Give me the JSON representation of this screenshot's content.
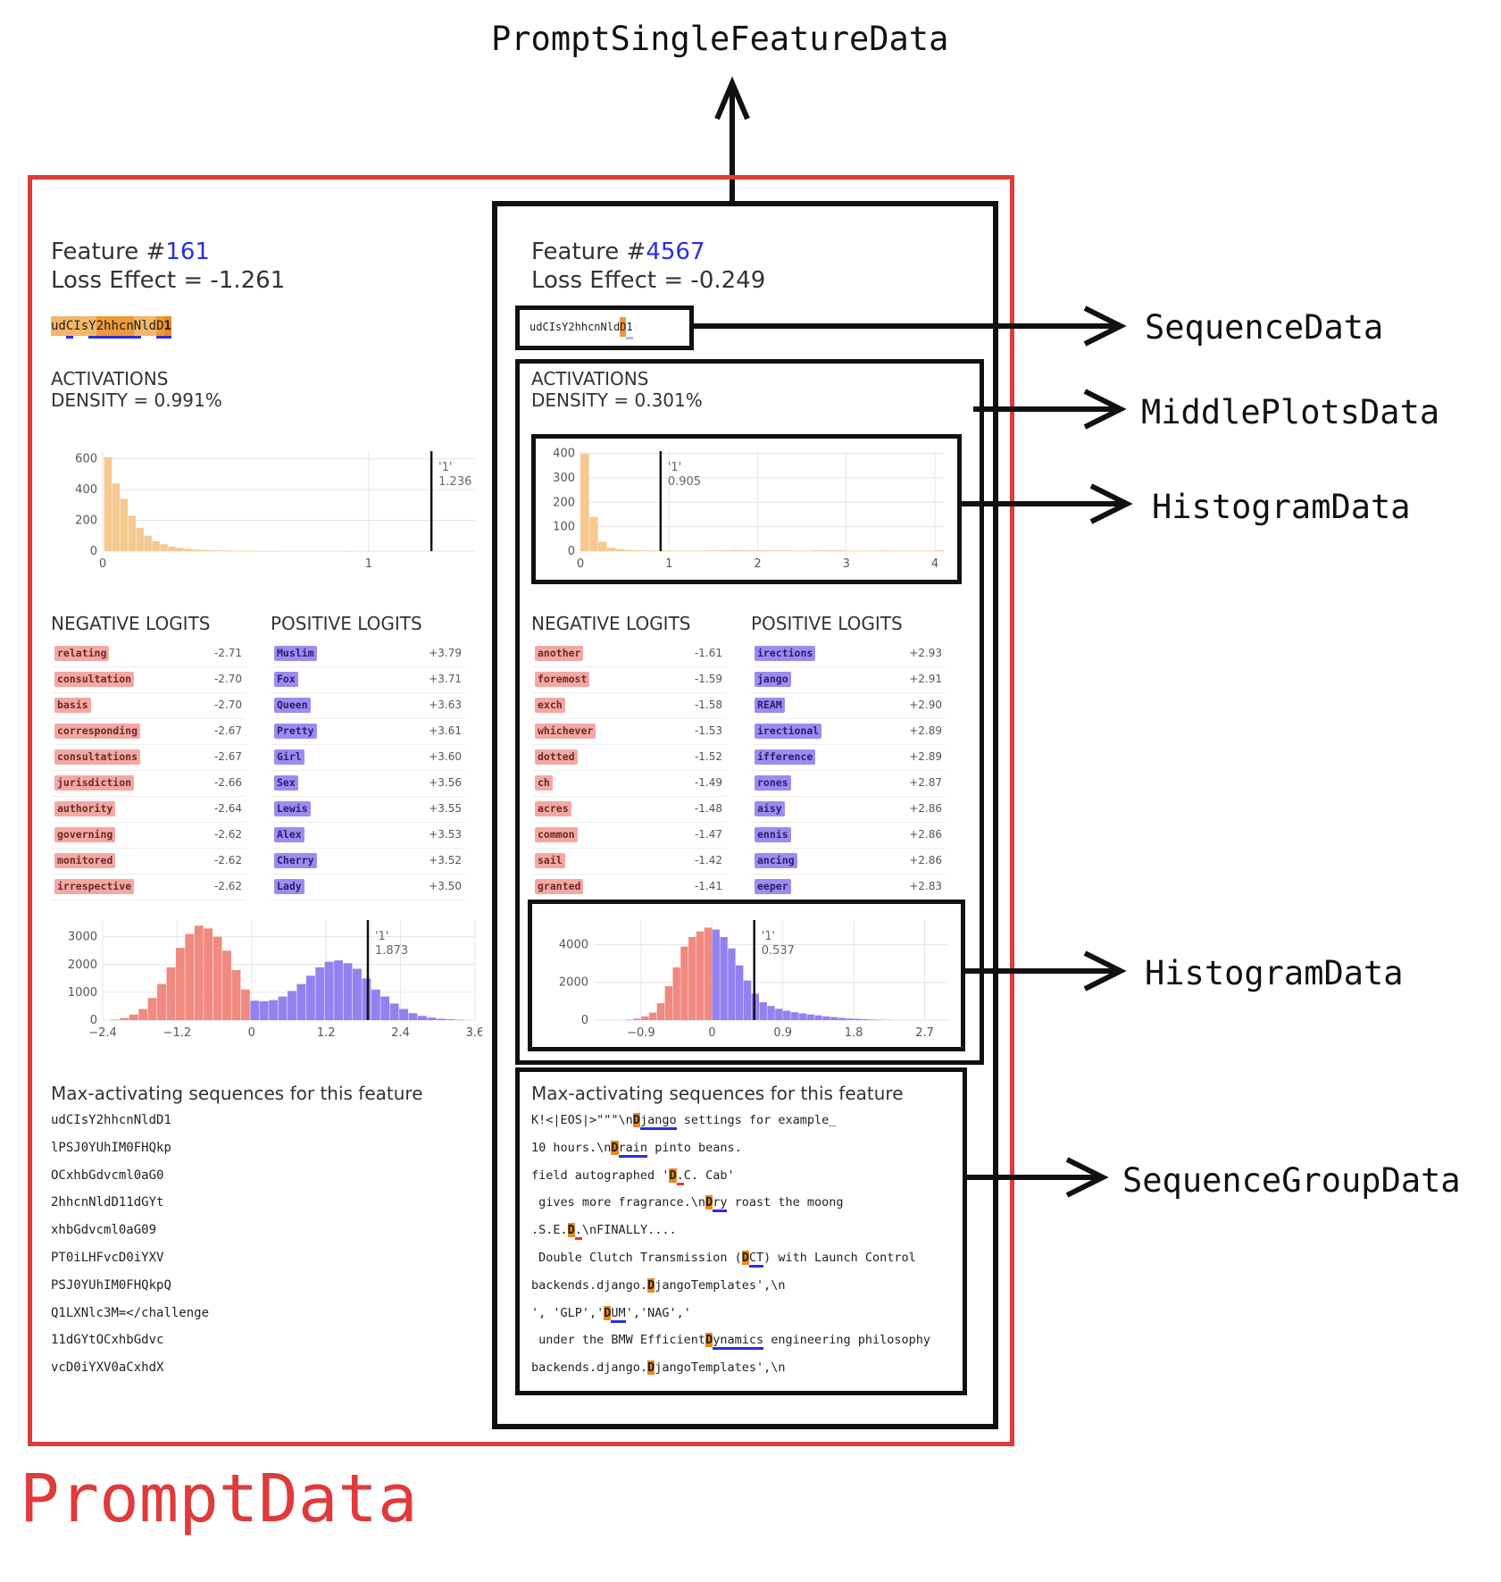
{
  "labels": {
    "top": "PromptSingleFeatureData",
    "sequence_data": "SequenceData",
    "middle_plots": "MiddlePlotsData",
    "histogram1": "HistogramData",
    "histogram2": "HistogramData",
    "sequence_group": "SequenceGroupData",
    "prompt": "PromptData"
  },
  "left": {
    "title_prefix": "Feature #",
    "feature_num": "161",
    "loss_effect": "Loss Effect = -1.261",
    "prompt_tokens": [
      "ud",
      "C",
      "I",
      "s",
      "Y",
      "2",
      "hh",
      "cn",
      "N",
      "l",
      "d",
      "D",
      "1"
    ],
    "activations_title": "ACTIVATIONS",
    "density": "DENSITY = 0.991%",
    "negative_title": "NEGATIVE LOGITS",
    "positive_title": "POSITIVE LOGITS",
    "negative_logits": [
      {
        "token": "relating",
        "value": "-2.71"
      },
      {
        "token": "consultation",
        "value": "-2.70"
      },
      {
        "token": "basis",
        "value": "-2.70"
      },
      {
        "token": "corresponding",
        "value": "-2.67"
      },
      {
        "token": "consultations",
        "value": "-2.67"
      },
      {
        "token": "jurisdiction",
        "value": "-2.66"
      },
      {
        "token": "authority",
        "value": "-2.64"
      },
      {
        "token": "governing",
        "value": "-2.62"
      },
      {
        "token": "monitored",
        "value": "-2.62"
      },
      {
        "token": "irrespective",
        "value": "-2.62"
      }
    ],
    "positive_logits": [
      {
        "token": "Muslim",
        "value": "+3.79"
      },
      {
        "token": "Fox",
        "value": "+3.71"
      },
      {
        "token": "Queen",
        "value": "+3.63"
      },
      {
        "token": "Pretty",
        "value": "+3.61"
      },
      {
        "token": "Girl",
        "value": "+3.60"
      },
      {
        "token": "Sex",
        "value": "+3.56"
      },
      {
        "token": "Lewis",
        "value": "+3.55"
      },
      {
        "token": "Alex",
        "value": "+3.53"
      },
      {
        "token": "Cherry",
        "value": "+3.52"
      },
      {
        "token": "Lady",
        "value": "+3.50"
      }
    ],
    "maxact_title": "Max-activating sequences for this feature",
    "max_sequences": [
      "udCIsY2hhcnNldD1",
      "lPSJ0YUhIM0FHQkp",
      "OCxhbGdvcml0aG0",
      "2hhcnNldD11dGYt",
      "xhbGdvcml0aG09",
      "PT0iLHFvcD0iYXV",
      "PSJ0YUhIM0FHQkpQ",
      "Q1LXNlc3M=</challenge",
      "11dGYtOCxhbGdvc",
      "vcD0iYXV0aCxhdX"
    ]
  },
  "right": {
    "title_prefix": "Feature #",
    "feature_num": "4567",
    "loss_effect": "Loss Effect = -0.249",
    "prompt_tokens": [
      "ud",
      "C",
      "I",
      "s",
      "Y",
      "2",
      "hh",
      "cn",
      "N",
      "l",
      "d",
      "D",
      "1"
    ],
    "activations_title": "ACTIVATIONS",
    "density": "DENSITY = 0.301%",
    "negative_title": "NEGATIVE LOGITS",
    "positive_title": "POSITIVE LOGITS",
    "negative_logits": [
      {
        "token": "another",
        "value": "-1.61"
      },
      {
        "token": "foremost",
        "value": "-1.59"
      },
      {
        "token": "exch",
        "value": "-1.58"
      },
      {
        "token": "whichever",
        "value": "-1.53"
      },
      {
        "token": "dotted",
        "value": "-1.52"
      },
      {
        "token": "ch",
        "value": "-1.49"
      },
      {
        "token": "acres",
        "value": "-1.48"
      },
      {
        "token": "common",
        "value": "-1.47"
      },
      {
        "token": "sail",
        "value": "-1.42"
      },
      {
        "token": "granted",
        "value": "-1.41"
      }
    ],
    "positive_logits": [
      {
        "token": "irections",
        "value": "+2.93"
      },
      {
        "token": "jango",
        "value": "+2.91"
      },
      {
        "token": "REAM",
        "value": "+2.90"
      },
      {
        "token": "irectional",
        "value": "+2.89"
      },
      {
        "token": "ifference",
        "value": "+2.89"
      },
      {
        "token": "rones",
        "value": "+2.87"
      },
      {
        "token": "aisy",
        "value": "+2.86"
      },
      {
        "token": "ennis",
        "value": "+2.86"
      },
      {
        "token": "ancing",
        "value": "+2.86"
      },
      {
        "token": "eeper",
        "value": "+2.83"
      }
    ],
    "maxact_title": "Max-activating sequences for this feature",
    "max_sequences": [
      {
        "pre": "K!<|EOS|>\"\"\"\\n",
        "hi": "D",
        "ul": "jango",
        "post": " settings for example_"
      },
      {
        "pre": "10 hours.\\n",
        "hi": "D",
        "ul": "rain",
        "post": " pinto beans."
      },
      {
        "pre": "field autographed '",
        "hi": "D",
        "ul": ".",
        "post": "C. Cab'"
      },
      {
        "pre": " gives more fragrance.\\n",
        "hi": "D",
        "ul": "ry",
        "post": " roast the moong"
      },
      {
        "pre": ".S.E.",
        "hi": "D",
        "ul": ".",
        "post": "\\nFINALLY...."
      },
      {
        "pre": " Double Clutch Transmission (",
        "hi": "D",
        "ul": "CT",
        "post": ") with Launch Control"
      },
      {
        "pre": "backends.django.",
        "hi": "D",
        "ul": "",
        "post": "jangoTemplates',\\n"
      },
      {
        "pre": "', 'GLP','",
        "hi": "D",
        "ul": "UM",
        "post": "','NAG','"
      },
      {
        "pre": " under the BMW Efficient",
        "hi": "D",
        "ul": "ynamics",
        "post": " engineering philosophy"
      },
      {
        "pre": "backends.django.",
        "hi": "D",
        "ul": "",
        "post": "jangoTemplates',\\n"
      }
    ]
  },
  "chart_data": [
    {
      "type": "bar",
      "name": "left-activation-histogram",
      "x": [
        0.02,
        0.05,
        0.08,
        0.11,
        0.14,
        0.17,
        0.2,
        0.23,
        0.26,
        0.29,
        0.32,
        0.35,
        0.38,
        0.41,
        0.44,
        0.47,
        0.5,
        0.53,
        0.56,
        0.59,
        0.62,
        0.65,
        0.68,
        0.71,
        0.74,
        0.77,
        0.8,
        0.83,
        0.86,
        0.89,
        0.92,
        0.95,
        0.98,
        1.01
      ],
      "values": [
        610,
        440,
        340,
        230,
        150,
        100,
        65,
        45,
        30,
        22,
        15,
        10,
        8,
        6,
        5,
        4,
        3,
        3,
        2,
        2,
        2,
        2,
        1,
        1,
        1,
        1,
        1,
        1,
        1,
        1,
        2,
        1,
        1,
        1
      ],
      "xlim": [
        0,
        1.4
      ],
      "ylim": [
        0,
        650
      ],
      "yticks": [
        0,
        200,
        400,
        600
      ],
      "xticks": [
        0,
        1
      ],
      "marker": {
        "label": "'1'",
        "value": "1.236",
        "x": 1.236
      },
      "color": "#f5c98f"
    },
    {
      "type": "bar",
      "name": "right-activation-histogram",
      "x": [
        0.05,
        0.15,
        0.25,
        0.35,
        0.45,
        0.55,
        0.65,
        0.75,
        0.85,
        0.95,
        1.05,
        1.15,
        1.25,
        1.35,
        1.45,
        1.55,
        1.65,
        1.75,
        1.85,
        1.95,
        2.05,
        2.15,
        2.25,
        2.35,
        2.45,
        2.55,
        2.65,
        2.75,
        2.85,
        2.95,
        3.05,
        3.15,
        3.25,
        3.35,
        3.45,
        3.55,
        3.65,
        3.75,
        3.85,
        3.95,
        4.05
      ],
      "values": [
        400,
        140,
        38,
        14,
        8,
        5,
        4,
        3,
        2,
        2,
        2,
        2,
        2,
        2,
        3,
        3,
        4,
        5,
        4,
        4,
        4,
        3,
        3,
        3,
        2,
        2,
        3,
        4,
        4,
        3,
        2,
        2,
        2,
        2,
        3,
        2,
        2,
        2,
        2,
        2,
        4
      ],
      "xlim": [
        0,
        4.1
      ],
      "ylim": [
        0,
        410
      ],
      "yticks": [
        0,
        100,
        200,
        300,
        400
      ],
      "xticks": [
        0,
        1,
        2,
        3,
        4
      ],
      "marker": {
        "label": "'1'",
        "value": "0.905",
        "x": 0.905
      },
      "color": "#f5c98f"
    },
    {
      "type": "bar",
      "name": "left-logit-histogram",
      "x": [
        -2.2,
        -2.05,
        -1.9,
        -1.75,
        -1.6,
        -1.45,
        -1.3,
        -1.15,
        -1.0,
        -0.85,
        -0.7,
        -0.55,
        -0.4,
        -0.25,
        -0.1,
        0.05,
        0.2,
        0.35,
        0.5,
        0.65,
        0.8,
        0.95,
        1.1,
        1.25,
        1.4,
        1.55,
        1.7,
        1.85,
        2.0,
        2.15,
        2.3,
        2.45,
        2.6,
        2.75,
        2.9,
        3.05,
        3.2,
        3.35
      ],
      "values": [
        20,
        80,
        200,
        400,
        800,
        1300,
        1900,
        2600,
        3100,
        3400,
        3300,
        3000,
        2500,
        1800,
        1100,
        700,
        680,
        720,
        850,
        1050,
        1300,
        1600,
        1900,
        2100,
        2150,
        2050,
        1850,
        1500,
        1100,
        850,
        600,
        400,
        250,
        150,
        90,
        50,
        30,
        15
      ],
      "xlim": [
        -2.4,
        3.6
      ],
      "ylim": [
        0,
        3600
      ],
      "yticks": [
        0,
        1000,
        2000,
        3000
      ],
      "xticks": [
        -2.4,
        -1.2,
        0,
        1.2,
        2.4,
        3.6
      ],
      "xtick_labels": [
        "−2.4",
        "−1.2",
        "0",
        "1.2",
        "2.4",
        "3.6"
      ],
      "marker": {
        "label": "'1'",
        "value": "1.873",
        "x": 1.873
      },
      "neg_color": "#f08a80",
      "pos_color": "#9481f0"
    },
    {
      "type": "bar",
      "name": "right-logit-histogram",
      "x": [
        -1.05,
        -0.95,
        -0.85,
        -0.75,
        -0.65,
        -0.55,
        -0.45,
        -0.35,
        -0.25,
        -0.15,
        -0.05,
        0.05,
        0.15,
        0.25,
        0.35,
        0.45,
        0.55,
        0.65,
        0.75,
        0.85,
        0.95,
        1.05,
        1.15,
        1.25,
        1.35,
        1.45,
        1.55,
        1.65,
        1.75,
        1.85,
        1.95,
        2.05,
        2.15,
        2.25
      ],
      "values": [
        30,
        80,
        200,
        400,
        900,
        1800,
        2800,
        3900,
        4400,
        4700,
        4900,
        4800,
        4400,
        3800,
        2900,
        2100,
        1400,
        950,
        750,
        600,
        500,
        420,
        360,
        300,
        250,
        200,
        160,
        120,
        90,
        70,
        50,
        30,
        20,
        10
      ],
      "xlim": [
        -1.5,
        3.0
      ],
      "ylim": [
        0,
        5300
      ],
      "yticks": [
        0,
        2000,
        4000
      ],
      "xticks": [
        -0.9,
        0,
        0.9,
        1.8,
        2.7
      ],
      "xtick_labels": [
        "−0.9",
        "0",
        "0.9",
        "1.8",
        "2.7"
      ],
      "marker": {
        "label": "'1'",
        "value": "0.537",
        "x": 0.537
      },
      "neg_color": "#f08a80",
      "pos_color": "#9481f0"
    }
  ],
  "colors": {
    "prompt_border": "#e03a3a",
    "feature_link": "#2a2ee0",
    "black": "#111111"
  }
}
